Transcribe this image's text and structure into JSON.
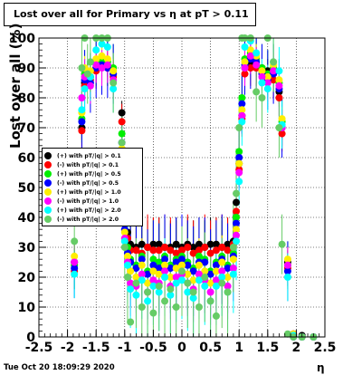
{
  "title": "Lost over all for Primary vs   η at pT > 0.11",
  "date": "Tue Oct 20 18:09:29 2020",
  "chart_data": {
    "type": "scatter",
    "xlabel": "η",
    "ylabel": "Lost over all (%)",
    "xlim": [
      -2.5,
      2.5
    ],
    "ylim": [
      0,
      100
    ],
    "xticks": [
      -2.5,
      -2,
      -1.5,
      -1,
      -0.5,
      0,
      0.5,
      1,
      1.5,
      2,
      2.5
    ],
    "yticks": [
      0,
      10,
      20,
      30,
      40,
      50,
      60,
      70,
      80,
      90,
      100
    ],
    "legend_position": "left",
    "series": [
      {
        "name": "(+) with pT/|q| > 0.1",
        "color": "#000000",
        "x": [
          -1.88,
          -1.75,
          -1.7,
          -1.65,
          -1.6,
          -1.5,
          -1.4,
          -1.3,
          -1.2,
          -1.05,
          -1.0,
          -0.95,
          -0.9,
          -0.8,
          -0.7,
          -0.6,
          -0.5,
          -0.4,
          -0.3,
          -0.2,
          -0.1,
          0.0,
          0.1,
          0.2,
          0.3,
          0.4,
          0.5,
          0.6,
          0.7,
          0.8,
          0.9,
          0.95,
          1.0,
          1.05,
          1.1,
          1.2,
          1.3,
          1.4,
          1.5,
          1.6,
          1.7,
          1.75,
          1.85,
          1.95,
          2.1,
          2.3
        ],
        "y": [
          25,
          70,
          85,
          88,
          87,
          90,
          92,
          91,
          88,
          75,
          45,
          35,
          31,
          30,
          31,
          30,
          31,
          31,
          30,
          30,
          31,
          30,
          31,
          30,
          31,
          30,
          31,
          31,
          30,
          31,
          32,
          45,
          58,
          74,
          90,
          92,
          91,
          90,
          89,
          88,
          82,
          70,
          25,
          1,
          0.5,
          0
        ]
      },
      {
        "name": "(-) with pT/|q| > 0.1",
        "color": "#ff0000",
        "x": [
          -1.88,
          -1.75,
          -1.7,
          -1.6,
          -1.5,
          -1.4,
          -1.3,
          -1.2,
          -1.05,
          -1.0,
          -0.95,
          -0.9,
          -0.8,
          -0.7,
          -0.6,
          -0.5,
          -0.4,
          -0.3,
          -0.2,
          -0.1,
          0.0,
          0.1,
          0.2,
          0.3,
          0.4,
          0.5,
          0.6,
          0.7,
          0.8,
          0.9,
          0.95,
          1.0,
          1.05,
          1.1,
          1.2,
          1.3,
          1.4,
          1.5,
          1.6,
          1.7,
          1.75,
          1.85,
          1.95,
          2.1,
          2.3
        ],
        "y": [
          22,
          69,
          84,
          86,
          89,
          91,
          90,
          87,
          72,
          42,
          33,
          29,
          29,
          28,
          30,
          29,
          29,
          30,
          29,
          28,
          29,
          30,
          28,
          29,
          30,
          28,
          29,
          30,
          29,
          31,
          42,
          56,
          73,
          88,
          90,
          90,
          89,
          87,
          86,
          80,
          68,
          23,
          1,
          0,
          0
        ]
      },
      {
        "name": "(+) with pT/|q| > 0.5",
        "color": "#00ee00",
        "x": [
          -1.88,
          -1.75,
          -1.7,
          -1.6,
          -1.5,
          -1.4,
          -1.3,
          -1.2,
          -1.05,
          -1.0,
          -0.95,
          -0.9,
          -0.8,
          -0.7,
          -0.6,
          -0.5,
          -0.4,
          -0.3,
          -0.2,
          -0.1,
          0.0,
          0.1,
          0.2,
          0.3,
          0.4,
          0.5,
          0.6,
          0.7,
          0.8,
          0.9,
          0.95,
          1.0,
          1.05,
          1.1,
          1.2,
          1.3,
          1.4,
          1.5,
          1.6,
          1.7,
          1.75,
          1.85,
          1.95,
          2.1,
          2.3
        ],
        "y": [
          24,
          73,
          88,
          87,
          92,
          93,
          92,
          90,
          68,
          38,
          30,
          26,
          24,
          27,
          22,
          26,
          25,
          27,
          24,
          26,
          27,
          25,
          23,
          27,
          26,
          22,
          25,
          27,
          24,
          28,
          40,
          62,
          80,
          93,
          95,
          93,
          90,
          88,
          90,
          85,
          72,
          24,
          0.5,
          0,
          0
        ]
      },
      {
        "name": "(-) with pT/|q| > 0.5",
        "color": "#0000ff",
        "x": [
          -1.88,
          -1.75,
          -1.7,
          -1.6,
          -1.5,
          -1.4,
          -1.3,
          -1.2,
          -1.05,
          -1.0,
          -0.95,
          -0.9,
          -0.8,
          -0.7,
          -0.6,
          -0.5,
          -0.4,
          -0.3,
          -0.2,
          -0.1,
          0.0,
          0.1,
          0.2,
          0.3,
          0.4,
          0.5,
          0.6,
          0.7,
          0.8,
          0.9,
          0.95,
          1.0,
          1.05,
          1.1,
          1.2,
          1.3,
          1.4,
          1.5,
          1.6,
          1.7,
          1.75,
          1.85,
          1.95,
          2.1,
          2.3
        ],
        "y": [
          23,
          72,
          86,
          85,
          90,
          91,
          90,
          88,
          65,
          36,
          28,
          25,
          23,
          26,
          21,
          24,
          23,
          26,
          23,
          25,
          26,
          24,
          22,
          25,
          25,
          21,
          24,
          26,
          23,
          27,
          38,
          60,
          78,
          91,
          93,
          92,
          88,
          86,
          88,
          83,
          70,
          22,
          0,
          0,
          0
        ]
      },
      {
        "name": "(+) with pT/|q| > 1.0",
        "color": "#ffee00",
        "x": [
          -1.88,
          -1.75,
          -1.7,
          -1.6,
          -1.5,
          -1.4,
          -1.3,
          -1.2,
          -1.05,
          -1.0,
          -0.95,
          -0.9,
          -0.8,
          -0.7,
          -0.6,
          -0.5,
          -0.4,
          -0.3,
          -0.2,
          -0.1,
          0.0,
          0.1,
          0.2,
          0.3,
          0.4,
          0.5,
          0.6,
          0.7,
          0.8,
          0.9,
          0.95,
          1.0,
          1.05,
          1.1,
          1.2,
          1.3,
          1.4,
          1.5,
          1.6,
          1.7,
          1.75,
          1.85,
          1.95,
          2.1,
          2.3
        ],
        "y": [
          27,
          75,
          90,
          89,
          93,
          94,
          93,
          89,
          63,
          35,
          27,
          22,
          20,
          24,
          18,
          22,
          21,
          24,
          20,
          23,
          24,
          21,
          19,
          24,
          22,
          18,
          22,
          25,
          20,
          26,
          36,
          58,
          76,
          92,
          96,
          94,
          89,
          87,
          91,
          86,
          73,
          26,
          1,
          0,
          0
        ]
      },
      {
        "name": "(-) with pT/|q| > 1.0",
        "color": "#ff00ff",
        "x": [
          -1.88,
          -1.75,
          -1.7,
          -1.6,
          -1.5,
          -1.4,
          -1.3,
          -1.2,
          -1.05,
          -1.0,
          -0.95,
          -0.9,
          -0.8,
          -0.7,
          -0.6,
          -0.5,
          -0.4,
          -0.3,
          -0.2,
          -0.1,
          0.0,
          0.1,
          0.2,
          0.3,
          0.4,
          0.5,
          0.6,
          0.7,
          0.8,
          0.9,
          0.95,
          1.0,
          1.05,
          1.1,
          1.2,
          1.3,
          1.4,
          1.5,
          1.6,
          1.7,
          1.75,
          1.85,
          1.95,
          2.1,
          2.3
        ],
        "y": [
          25,
          80,
          87,
          84,
          91,
          90,
          91,
          86,
          60,
          33,
          25,
          18,
          17,
          21,
          15,
          19,
          18,
          22,
          17,
          20,
          21,
          18,
          16,
          21,
          19,
          15,
          19,
          22,
          17,
          23,
          34,
          55,
          74,
          90,
          94,
          91,
          87,
          85,
          89,
          84,
          70,
          24,
          0.5,
          0,
          0
        ]
      },
      {
        "name": "(+) with pT/|q| > 2.0",
        "color": "#00ffff",
        "x": [
          -1.88,
          -1.75,
          -1.7,
          -1.6,
          -1.5,
          -1.4,
          -1.3,
          -1.2,
          -1.05,
          -1.0,
          -0.95,
          -0.9,
          -0.8,
          -0.7,
          -0.6,
          -0.5,
          -0.4,
          -0.3,
          -0.2,
          -0.1,
          0.0,
          0.1,
          0.2,
          0.3,
          0.4,
          0.5,
          0.6,
          0.7,
          0.8,
          0.9,
          0.95,
          1.0,
          1.05,
          1.1,
          1.2,
          1.3,
          1.4,
          1.5,
          1.6,
          1.7,
          1.75,
          1.85,
          1.95,
          2.1,
          2.3
        ],
        "y": [
          21,
          76,
          83,
          87,
          96,
          98,
          97,
          83,
          62,
          32,
          24,
          16,
          14,
          19,
          12,
          17,
          15,
          20,
          14,
          18,
          19,
          15,
          13,
          19,
          17,
          12,
          17,
          20,
          15,
          21,
          32,
          52,
          72,
          97,
          99,
          95,
          85,
          83,
          92,
          89,
          71,
          20,
          0.5,
          0,
          0
        ]
      },
      {
        "name": "(-) with pT/|q| > 2.0",
        "color": "#66cc66",
        "x": [
          -1.88,
          -1.75,
          -1.7,
          -1.65,
          -1.6,
          -1.5,
          -1.4,
          -1.3,
          -1.2,
          -1.05,
          -1.0,
          -0.95,
          -0.9,
          -0.8,
          -0.7,
          -0.6,
          -0.5,
          -0.4,
          -0.3,
          -0.2,
          -0.1,
          0.0,
          0.1,
          0.2,
          0.3,
          0.4,
          0.5,
          0.6,
          0.7,
          0.8,
          0.9,
          0.95,
          1.0,
          1.05,
          1.1,
          1.2,
          1.3,
          1.4,
          1.5,
          1.6,
          1.7,
          1.75,
          1.85,
          1.95,
          2.1,
          2.3
        ],
        "y": [
          32,
          90,
          100,
          88,
          92,
          100,
          100,
          100,
          85,
          65,
          30,
          20,
          5,
          18,
          10,
          15,
          8,
          17,
          12,
          16,
          10,
          22,
          18,
          15,
          10,
          20,
          12,
          7,
          18,
          15,
          30,
          48,
          70,
          100,
          100,
          100,
          82,
          80,
          100,
          92,
          70,
          31,
          1,
          0,
          0,
          0
        ]
      }
    ]
  }
}
